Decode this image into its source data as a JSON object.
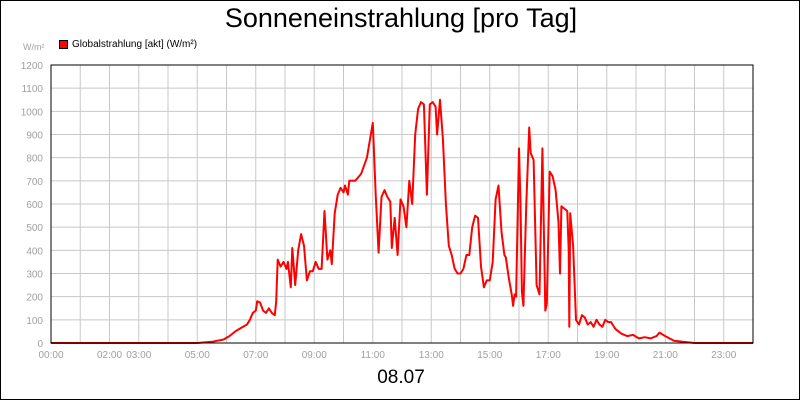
{
  "chart_data": {
    "type": "line",
    "title": "Sonneneinstrahlung [pro Tag]",
    "unit_label": "W/m²",
    "date_label": "08.07",
    "xlabel": "",
    "ylabel": "",
    "xlim": [
      0,
      24
    ],
    "ylim": [
      0,
      1200
    ],
    "y_ticks": [
      0,
      100,
      200,
      300,
      400,
      500,
      600,
      700,
      800,
      900,
      1000,
      1100,
      1200
    ],
    "x_ticks": [
      {
        "t": 0,
        "label": "00:00"
      },
      {
        "t": 2,
        "label": "02:00"
      },
      {
        "t": 3,
        "label": "03:00"
      },
      {
        "t": 5,
        "label": "05:00"
      },
      {
        "t": 7,
        "label": "07:00"
      },
      {
        "t": 9,
        "label": "09:00"
      },
      {
        "t": 11,
        "label": "11:00"
      },
      {
        "t": 13,
        "label": "13:00"
      },
      {
        "t": 15,
        "label": "15:00"
      },
      {
        "t": 17,
        "label": "17:00"
      },
      {
        "t": 19,
        "label": "19:00"
      },
      {
        "t": 21,
        "label": "21:00"
      },
      {
        "t": 23,
        "label": "23:00"
      }
    ],
    "grid": true,
    "legend_position": "top-left",
    "colors": {
      "line": "#ff0000",
      "grid": "#c8c8c8",
      "frame": "#000000",
      "ticks": "#a0a0a0"
    },
    "series": [
      {
        "name": "Globalstrahlung [akt] (W/m²)",
        "points": [
          [
            0,
            0
          ],
          [
            5.0,
            0
          ],
          [
            5.5,
            5
          ],
          [
            5.9,
            15
          ],
          [
            6.1,
            30
          ],
          [
            6.3,
            50
          ],
          [
            6.5,
            65
          ],
          [
            6.7,
            80
          ],
          [
            6.8,
            100
          ],
          [
            6.9,
            130
          ],
          [
            7.0,
            140
          ],
          [
            7.05,
            180
          ],
          [
            7.15,
            175
          ],
          [
            7.25,
            140
          ],
          [
            7.35,
            130
          ],
          [
            7.45,
            150
          ],
          [
            7.55,
            130
          ],
          [
            7.65,
            120
          ],
          [
            7.7,
            180
          ],
          [
            7.75,
            360
          ],
          [
            7.85,
            330
          ],
          [
            7.95,
            350
          ],
          [
            8.05,
            320
          ],
          [
            8.1,
            350
          ],
          [
            8.2,
            240
          ],
          [
            8.25,
            410
          ],
          [
            8.35,
            250
          ],
          [
            8.45,
            400
          ],
          [
            8.55,
            470
          ],
          [
            8.65,
            420
          ],
          [
            8.75,
            270
          ],
          [
            8.85,
            310
          ],
          [
            8.95,
            310
          ],
          [
            9.05,
            350
          ],
          [
            9.15,
            320
          ],
          [
            9.25,
            320
          ],
          [
            9.35,
            570
          ],
          [
            9.45,
            360
          ],
          [
            9.55,
            400
          ],
          [
            9.6,
            340
          ],
          [
            9.7,
            560
          ],
          [
            9.8,
            640
          ],
          [
            9.9,
            670
          ],
          [
            10.0,
            650
          ],
          [
            10.05,
            680
          ],
          [
            10.15,
            640
          ],
          [
            10.2,
            700
          ],
          [
            10.4,
            700
          ],
          [
            10.6,
            730
          ],
          [
            10.8,
            800
          ],
          [
            11.0,
            950
          ],
          [
            11.1,
            640
          ],
          [
            11.2,
            390
          ],
          [
            11.3,
            630
          ],
          [
            11.4,
            660
          ],
          [
            11.5,
            630
          ],
          [
            11.6,
            610
          ],
          [
            11.65,
            410
          ],
          [
            11.75,
            540
          ],
          [
            11.85,
            380
          ],
          [
            11.95,
            620
          ],
          [
            12.05,
            590
          ],
          [
            12.15,
            500
          ],
          [
            12.25,
            700
          ],
          [
            12.35,
            600
          ],
          [
            12.45,
            900
          ],
          [
            12.55,
            1010
          ],
          [
            12.65,
            1040
          ],
          [
            12.75,
            1030
          ],
          [
            12.85,
            640
          ],
          [
            12.95,
            1030
          ],
          [
            13.05,
            1040
          ],
          [
            13.15,
            1020
          ],
          [
            13.2,
            900
          ],
          [
            13.3,
            1050
          ],
          [
            13.4,
            880
          ],
          [
            13.5,
            600
          ],
          [
            13.6,
            420
          ],
          [
            13.7,
            380
          ],
          [
            13.8,
            320
          ],
          [
            13.9,
            300
          ],
          [
            14.0,
            300
          ],
          [
            14.1,
            320
          ],
          [
            14.2,
            380
          ],
          [
            14.3,
            380
          ],
          [
            14.4,
            500
          ],
          [
            14.5,
            550
          ],
          [
            14.6,
            540
          ],
          [
            14.7,
            330
          ],
          [
            14.8,
            240
          ],
          [
            14.9,
            270
          ],
          [
            15.0,
            270
          ],
          [
            15.1,
            350
          ],
          [
            15.2,
            620
          ],
          [
            15.3,
            680
          ],
          [
            15.4,
            480
          ],
          [
            15.5,
            380
          ],
          [
            15.55,
            370
          ],
          [
            15.65,
            280
          ],
          [
            15.75,
            210
          ],
          [
            15.8,
            160
          ],
          [
            15.85,
            210
          ],
          [
            15.9,
            200
          ],
          [
            16.0,
            840
          ],
          [
            16.05,
            600
          ],
          [
            16.1,
            220
          ],
          [
            16.15,
            160
          ],
          [
            16.25,
            600
          ],
          [
            16.35,
            930
          ],
          [
            16.4,
            820
          ],
          [
            16.5,
            790
          ],
          [
            16.6,
            250
          ],
          [
            16.7,
            210
          ],
          [
            16.8,
            840
          ],
          [
            16.9,
            140
          ],
          [
            16.95,
            170
          ],
          [
            17.05,
            740
          ],
          [
            17.15,
            720
          ],
          [
            17.25,
            660
          ],
          [
            17.35,
            520
          ],
          [
            17.4,
            300
          ],
          [
            17.45,
            590
          ],
          [
            17.55,
            580
          ],
          [
            17.65,
            570
          ],
          [
            17.7,
            400
          ],
          [
            17.72,
            70
          ],
          [
            17.75,
            560
          ],
          [
            17.85,
            420
          ],
          [
            17.95,
            100
          ],
          [
            18.05,
            80
          ],
          [
            18.15,
            120
          ],
          [
            18.25,
            110
          ],
          [
            18.35,
            80
          ],
          [
            18.45,
            90
          ],
          [
            18.55,
            70
          ],
          [
            18.65,
            100
          ],
          [
            18.75,
            80
          ],
          [
            18.85,
            70
          ],
          [
            18.95,
            100
          ],
          [
            19.05,
            90
          ],
          [
            19.15,
            90
          ],
          [
            19.3,
            60
          ],
          [
            19.5,
            40
          ],
          [
            19.7,
            30
          ],
          [
            19.9,
            35
          ],
          [
            20.1,
            20
          ],
          [
            20.3,
            25
          ],
          [
            20.5,
            20
          ],
          [
            20.7,
            30
          ],
          [
            20.8,
            45
          ],
          [
            21.0,
            30
          ],
          [
            21.3,
            10
          ],
          [
            21.6,
            5
          ],
          [
            22.0,
            0
          ],
          [
            24,
            0
          ]
        ]
      }
    ]
  }
}
